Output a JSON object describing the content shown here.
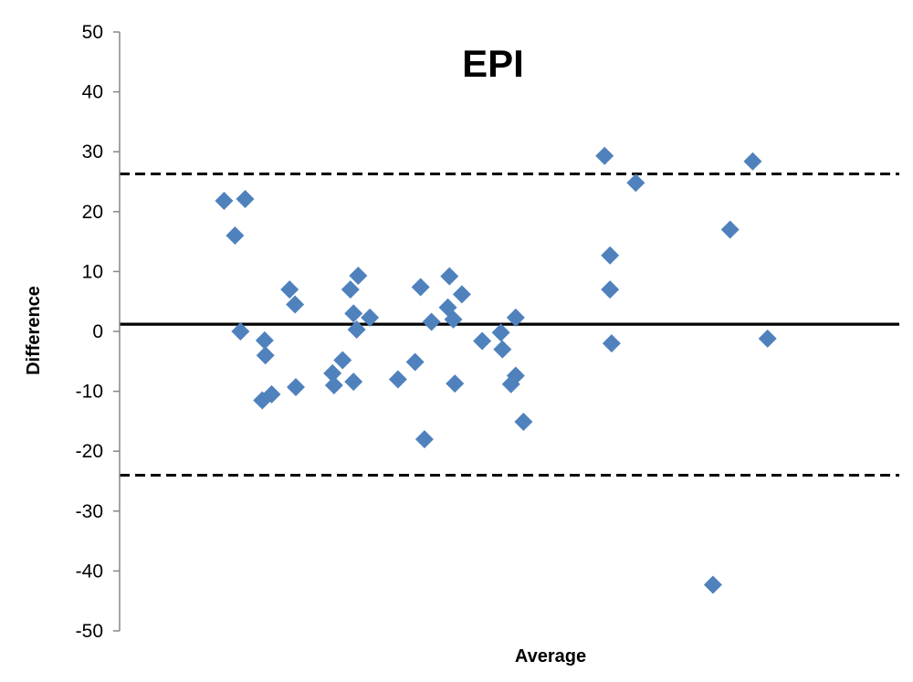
{
  "chart_data": {
    "type": "scatter",
    "title": "EPI",
    "xlabel": "Average",
    "ylabel": "Difference",
    "ylim": [
      -50,
      50
    ],
    "yticks": [
      50,
      40,
      30,
      20,
      10,
      0,
      -10,
      -20,
      -30,
      -40,
      -50
    ],
    "xlim": [
      0,
      100
    ],
    "x_tick_labels_shown": false,
    "grid": false,
    "legend": "none",
    "marker": "diamond",
    "marker_color": "#4f81bd",
    "reference_lines": [
      {
        "name": "mean",
        "value": 1.2,
        "style": "solid"
      },
      {
        "name": "upper-limit",
        "value": 26.3,
        "style": "dashed"
      },
      {
        "name": "lower-limit",
        "value": -24.0,
        "style": "dashed"
      }
    ],
    "points": [
      {
        "x": 13.4,
        "y": 21.8
      },
      {
        "x": 16.1,
        "y": 22.1
      },
      {
        "x": 14.8,
        "y": 16.0
      },
      {
        "x": 15.5,
        "y": 0.0
      },
      {
        "x": 18.6,
        "y": -1.5
      },
      {
        "x": 18.7,
        "y": -4.0
      },
      {
        "x": 18.3,
        "y": -11.5
      },
      {
        "x": 19.5,
        "y": -10.5
      },
      {
        "x": 21.8,
        "y": 7.0
      },
      {
        "x": 22.5,
        "y": 4.5
      },
      {
        "x": 22.6,
        "y": -9.3
      },
      {
        "x": 27.5,
        "y": -9.0
      },
      {
        "x": 27.3,
        "y": -7.0
      },
      {
        "x": 28.6,
        "y": -4.8
      },
      {
        "x": 29.6,
        "y": 7.0
      },
      {
        "x": 30.6,
        "y": 9.3
      },
      {
        "x": 30.0,
        "y": 3.0
      },
      {
        "x": 30.4,
        "y": 0.3
      },
      {
        "x": 32.1,
        "y": 2.3
      },
      {
        "x": 30.0,
        "y": -8.4
      },
      {
        "x": 35.7,
        "y": -8.0
      },
      {
        "x": 37.9,
        "y": -5.1
      },
      {
        "x": 38.6,
        "y": 7.4
      },
      {
        "x": 39.1,
        "y": -18.0
      },
      {
        "x": 40.0,
        "y": 1.6
      },
      {
        "x": 42.3,
        "y": 9.2
      },
      {
        "x": 42.1,
        "y": 4.0
      },
      {
        "x": 42.8,
        "y": 2.0
      },
      {
        "x": 43.9,
        "y": 6.2
      },
      {
        "x": 43.0,
        "y": -8.7
      },
      {
        "x": 46.5,
        "y": -1.6
      },
      {
        "x": 48.9,
        "y": -0.2
      },
      {
        "x": 49.1,
        "y": -3.0
      },
      {
        "x": 50.2,
        "y": -8.8
      },
      {
        "x": 50.8,
        "y": -7.4
      },
      {
        "x": 50.8,
        "y": 2.3
      },
      {
        "x": 51.8,
        "y": -15.1
      },
      {
        "x": 62.2,
        "y": 29.3
      },
      {
        "x": 62.9,
        "y": 12.7
      },
      {
        "x": 62.9,
        "y": 7.0
      },
      {
        "x": 63.1,
        "y": -2.0
      },
      {
        "x": 66.2,
        "y": 24.8
      },
      {
        "x": 76.1,
        "y": -42.3
      },
      {
        "x": 78.3,
        "y": 17.0
      },
      {
        "x": 81.2,
        "y": 28.4
      },
      {
        "x": 83.1,
        "y": -1.2
      }
    ]
  }
}
